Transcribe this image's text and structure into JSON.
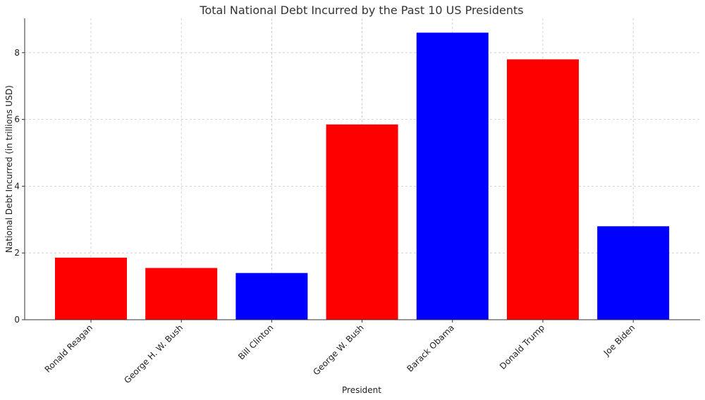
{
  "chart_data": {
    "type": "bar",
    "title": "Total National Debt Incurred by the Past 10 US Presidents",
    "xlabel": "President",
    "ylabel": "National Debt Incurred (in trillions USD)",
    "categories": [
      "Ronald Reagan",
      "George H. W. Bush",
      "Bill Clinton",
      "George W. Bush",
      "Barack Obama",
      "Donald Trump",
      "Joe Biden"
    ],
    "values": [
      1.86,
      1.55,
      1.4,
      5.85,
      8.6,
      7.8,
      2.8
    ],
    "bar_colors": [
      "#ff0000",
      "#ff0000",
      "#0000ff",
      "#ff0000",
      "#0000ff",
      "#ff0000",
      "#0000ff"
    ],
    "yticks": [
      0,
      2,
      4,
      6,
      8
    ],
    "ylim": [
      0,
      9.03
    ],
    "grid": true
  }
}
